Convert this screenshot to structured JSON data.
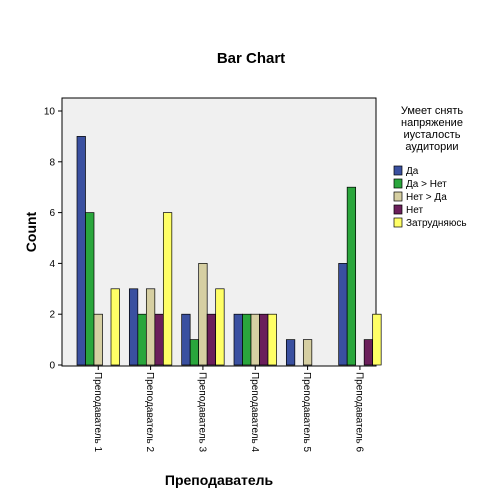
{
  "chart_data": {
    "type": "bar",
    "title": "Bar Chart",
    "xlabel": "Преподаватель",
    "ylabel": "Count",
    "ylim": [
      0,
      10
    ],
    "yticks": [
      0,
      2,
      4,
      6,
      8,
      10
    ],
    "grid": false,
    "legend_position": "right",
    "legend_title": [
      "Умеет снять",
      "напряжение",
      "иусталость",
      "аудитории"
    ],
    "categories": [
      "Преподаватель 1",
      "Преподаватель 2",
      "Преподаватель 3",
      "Преподаватель 4",
      "Преподаватель 5",
      "Преподаватель 6"
    ],
    "series": [
      {
        "name": "Да",
        "color": "#3a50a0",
        "values": [
          9,
          3,
          2,
          2,
          1,
          4
        ]
      },
      {
        "name": "Да > Нет",
        "color": "#2aa63c",
        "values": [
          6,
          2,
          1,
          2,
          0,
          7
        ]
      },
      {
        "name": "Нет > Да",
        "color": "#d6cfa2",
        "values": [
          2,
          3,
          4,
          2,
          1,
          0
        ]
      },
      {
        "name": "Нет",
        "color": "#6b1f5b",
        "values": [
          0,
          2,
          2,
          2,
          0,
          1
        ]
      },
      {
        "name": "Затрудняюсь",
        "color": "#ffff66",
        "values": [
          3,
          6,
          3,
          2,
          0,
          2
        ]
      }
    ],
    "plot_background": "#f0f0f0"
  }
}
